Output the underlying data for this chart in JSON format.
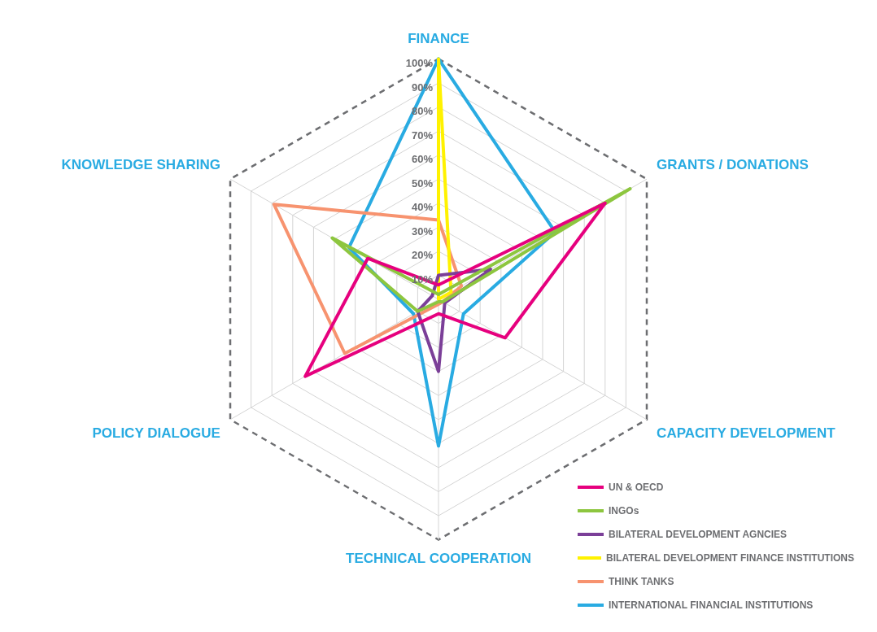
{
  "chart_data": {
    "type": "radar",
    "categories": [
      "FINANCE",
      "GRANTS / DONATIONS",
      "CAPACITY DEVELOPMENT",
      "TECHNICAL COOPERATION",
      "POLICY DIALOGUE",
      "KNOWLEDGE SHARING"
    ],
    "series": [
      {
        "name": "UN & OECD",
        "color": "#e6007e",
        "values": [
          6,
          80,
          32,
          6,
          64,
          34
        ]
      },
      {
        "name": "INGOs",
        "color": "#8dc63f",
        "values": [
          2,
          92,
          2,
          1,
          10,
          51
        ]
      },
      {
        "name": "BILATERAL DEVELOPMENT AGNCIES",
        "color": "#7b3f98",
        "values": [
          10,
          25,
          3,
          30,
          10,
          3
        ]
      },
      {
        "name": "BILATERAL DEVELOPMENT FINANCE INSTITUTIONS",
        "color": "#fff200",
        "values": [
          100,
          6,
          0,
          0,
          0,
          0
        ]
      },
      {
        "name": "THINK TANKS",
        "color": "#f7936f",
        "values": [
          33,
          11,
          2,
          2,
          45,
          79
        ]
      },
      {
        "name": "INTERNATIONAL FINANCIAL INSTITUTIONS",
        "color": "#29abe2",
        "values": [
          100,
          56,
          12,
          61,
          12,
          43
        ]
      }
    ],
    "ylim": [
      0,
      100
    ],
    "yticks": [
      {
        "value": 10,
        "label": "10%"
      },
      {
        "value": 20,
        "label": "20%"
      },
      {
        "value": 30,
        "label": "30%"
      },
      {
        "value": 40,
        "label": "40%"
      },
      {
        "value": 50,
        "label": "50%"
      },
      {
        "value": 60,
        "label": "60%"
      },
      {
        "value": 70,
        "label": "70%"
      },
      {
        "value": 80,
        "label": "80%"
      },
      {
        "value": 90,
        "label": "90%"
      },
      {
        "value": 100,
        "label": "100%"
      }
    ],
    "grid": true,
    "legend": "bottom right",
    "marker": "none"
  }
}
